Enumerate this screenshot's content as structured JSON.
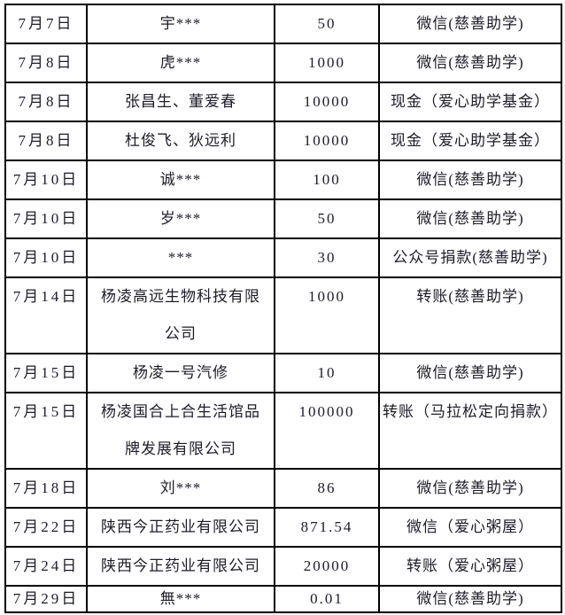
{
  "page": {
    "background": "#ffffff"
  },
  "colors": {
    "border": "#000000",
    "text": "#1c1c28"
  },
  "table": {
    "name": "donation-records-table",
    "columns": [
      "date",
      "donor",
      "amount",
      "method"
    ],
    "rows": [
      {
        "date": "7月7日",
        "donor": "宇***",
        "amount": "50",
        "method": "微信(慈善助学)"
      },
      {
        "date": "7月8日",
        "donor": "虎***",
        "amount": "1000",
        "method": "微信(慈善助学)"
      },
      {
        "date": "7月8日",
        "donor": "张昌生、董爱春",
        "amount": "10000",
        "method": "现金（爱心助学基金）"
      },
      {
        "date": "7月8日",
        "donor": "杜俊飞、狄远利",
        "amount": "10000",
        "method": "现金（爱心助学基金）"
      },
      {
        "date": "7月10日",
        "donor": "诚***",
        "amount": "100",
        "method": "微信(慈善助学)"
      },
      {
        "date": "7月10日",
        "donor": "岁***",
        "amount": "50",
        "method": "微信(慈善助学)"
      },
      {
        "date": "7月10日",
        "donor": "***",
        "amount": "30",
        "method": "公众号捐款(慈善助学)"
      },
      {
        "date": "7月14日",
        "donor": "杨凌高远生物科技有限\n公司",
        "amount": "1000",
        "method": "转账(慈善助学)"
      },
      {
        "date": "7月15日",
        "donor": "杨凌一号汽修",
        "amount": "10",
        "method": "微信(慈善助学)"
      },
      {
        "date": "7月15日",
        "donor": "杨凌国合上合生活馆品\n牌发展有限公司",
        "amount": "100000",
        "method": "转账（马拉松定向捐款）"
      },
      {
        "date": "7月18日",
        "donor": "刘***",
        "amount": "86",
        "method": "微信(慈善助学)"
      },
      {
        "date": "7月22日",
        "donor": "陕西今正药业有限公司",
        "amount": "871.54",
        "method": "微信（爱心粥屋）"
      },
      {
        "date": "7月24日",
        "donor": "陕西今正药业有限公司",
        "amount": "20000",
        "method": "转账（爱心粥屋）"
      },
      {
        "date": "7月29日",
        "donor": "無***",
        "amount": "0.01",
        "method": "微信(慈善助学)"
      }
    ]
  }
}
